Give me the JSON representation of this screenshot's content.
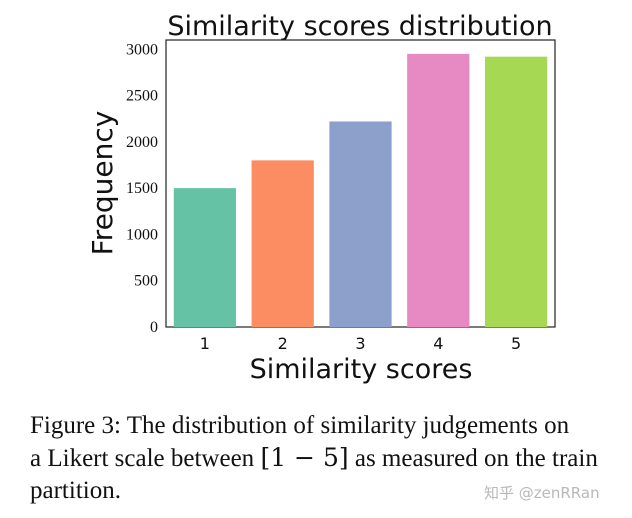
{
  "chart_data": {
    "type": "bar",
    "title": "Similarity scores distribution",
    "xlabel": "Similarity scores",
    "ylabel": "Frequency",
    "categories": [
      "1",
      "2",
      "3",
      "4",
      "5"
    ],
    "values": [
      1500,
      1800,
      2220,
      2950,
      2920
    ],
    "colors": [
      "#66c2a5",
      "#fc8d62",
      "#8da0cb",
      "#e78ac3",
      "#a6d854"
    ],
    "yticks": [
      0,
      500,
      1000,
      1500,
      2000,
      2500,
      3000
    ],
    "ylim": [
      0,
      3100
    ],
    "grid": false,
    "legend": "none"
  },
  "caption": {
    "line1": "Figure 3: The distribution of similarity judgements on",
    "line2_pre": "a Likert scale between ",
    "line2_math": "[1 − 5]",
    "line2_post": " as measured on the train",
    "line3": "partition."
  },
  "watermark": "知乎 @zenRRan"
}
